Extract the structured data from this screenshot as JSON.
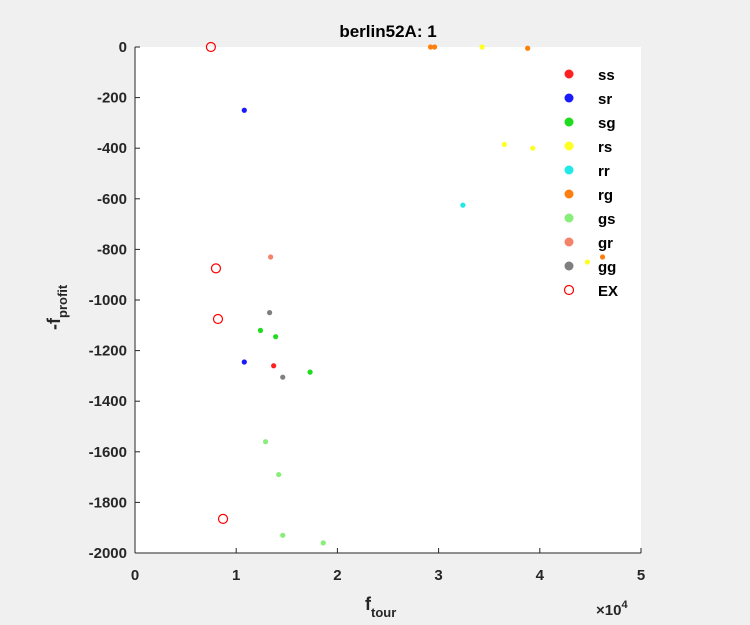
{
  "chart_data": {
    "type": "scatter",
    "title": "berlin52A: 1",
    "xlabel": {
      "main": "f",
      "sub": "tour"
    },
    "ylabel": {
      "main": "-f",
      "sub": "profit"
    },
    "x_exponent_label": "×10",
    "x_exponent_power": "4",
    "xlim": [
      0,
      5
    ],
    "ylim": [
      -2000,
      0
    ],
    "xticks": [
      0,
      1,
      2,
      3,
      4,
      5
    ],
    "yticks": [
      0,
      -200,
      -400,
      -600,
      -800,
      -1000,
      -1200,
      -1400,
      -1600,
      -1800,
      -2000
    ],
    "xtick_labels": [
      "0",
      "1",
      "2",
      "3",
      "4",
      "5"
    ],
    "ytick_labels": [
      "0",
      "-200",
      "-400",
      "-600",
      "-800",
      "-1000",
      "-1200",
      "-1400",
      "-1600",
      "-1800",
      "-2000"
    ],
    "grid": false,
    "legend_position": "top-right",
    "series": [
      {
        "name": "ss",
        "color": "#ff2020",
        "marker": "filled",
        "points": [
          [
            1.37,
            -1260
          ]
        ]
      },
      {
        "name": "sr",
        "color": "#1a1aff",
        "marker": "filled",
        "points": [
          [
            1.08,
            -250
          ],
          [
            1.08,
            -1245
          ]
        ]
      },
      {
        "name": "sg",
        "color": "#1fdc1f",
        "marker": "filled",
        "points": [
          [
            1.24,
            -1120
          ],
          [
            1.39,
            -1145
          ],
          [
            1.73,
            -1285
          ]
        ]
      },
      {
        "name": "rs",
        "color": "#ffff22",
        "marker": "filled",
        "points": [
          [
            3.43,
            0
          ],
          [
            3.65,
            -385
          ],
          [
            3.93,
            -400
          ],
          [
            4.47,
            -850
          ]
        ]
      },
      {
        "name": "rr",
        "color": "#22e8e8",
        "marker": "filled",
        "points": [
          [
            3.24,
            -625
          ]
        ]
      },
      {
        "name": "rg",
        "color": "#ff7f0e",
        "marker": "filled",
        "points": [
          [
            2.92,
            0
          ],
          [
            2.96,
            0
          ],
          [
            3.88,
            -5
          ],
          [
            4.62,
            -830
          ]
        ]
      },
      {
        "name": "gs",
        "color": "#88ee7a",
        "marker": "filled",
        "points": [
          [
            1.29,
            -1560
          ],
          [
            1.42,
            -1690
          ],
          [
            1.46,
            -1930
          ],
          [
            1.86,
            -1960
          ]
        ]
      },
      {
        "name": "gr",
        "color": "#f5836a",
        "marker": "filled",
        "points": [
          [
            1.34,
            -830
          ]
        ]
      },
      {
        "name": "gg",
        "color": "#7f7f7f",
        "marker": "filled",
        "points": [
          [
            1.33,
            -1050
          ],
          [
            1.46,
            -1305
          ]
        ]
      },
      {
        "name": "EX",
        "color": "#ff0000",
        "marker": "open-circle",
        "points": [
          [
            0.75,
            0
          ],
          [
            0.8,
            -875
          ],
          [
            0.82,
            -1075
          ],
          [
            0.87,
            -1865
          ]
        ]
      }
    ]
  }
}
